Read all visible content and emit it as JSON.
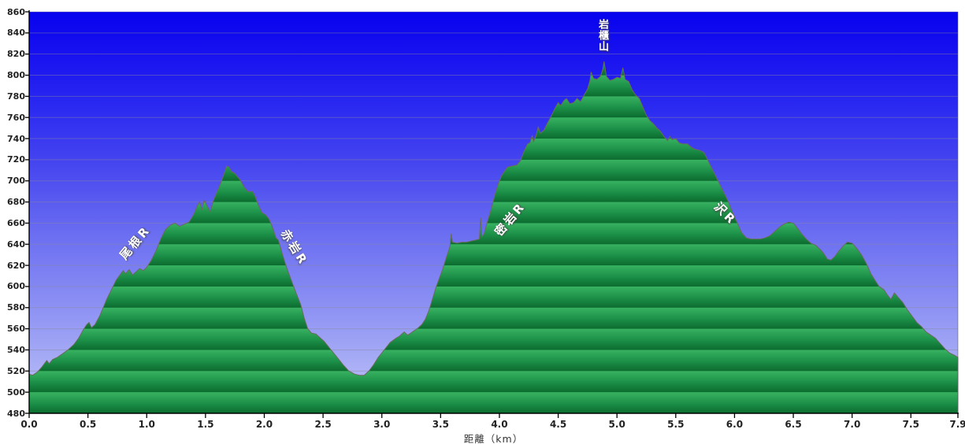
{
  "window": {
    "title": "elevation-profile-chart"
  },
  "colors": {
    "plot_bg_top": "#0702ee",
    "plot_bg_bottom": "#c3c7f9",
    "mountain_band_light": "#38b261",
    "mountain_band_mid": "#1b8f47",
    "mountain_band_dark": "#0c6b2f",
    "profile_stroke": "#6b6b5a",
    "gridline": "#8a8a9a",
    "axis_line": "#000000",
    "tick_text": "#222222",
    "annotation_text": "#ffffff"
  },
  "chart_data": {
    "type": "area",
    "title": "",
    "xlabel": "距離（km）",
    "ylabel": "",
    "xlim": [
      0,
      7.9
    ],
    "ylim": [
      480,
      860
    ],
    "grid": true,
    "x_ticks": [
      0.0,
      0.5,
      1.0,
      1.5,
      2.0,
      2.5,
      3.0,
      3.5,
      4.0,
      4.5,
      5.0,
      5.5,
      6.0,
      6.5,
      7.0,
      7.5,
      7.9
    ],
    "y_ticks": [
      480,
      500,
      520,
      540,
      560,
      580,
      600,
      620,
      640,
      660,
      680,
      700,
      720,
      740,
      760,
      780,
      800,
      820,
      840,
      860
    ],
    "series": [
      {
        "name": "elevation-profile",
        "points": [
          [
            0.0,
            517
          ],
          [
            0.03,
            516
          ],
          [
            0.07,
            519
          ],
          [
            0.11,
            524
          ],
          [
            0.15,
            530
          ],
          [
            0.17,
            527
          ],
          [
            0.2,
            531
          ],
          [
            0.24,
            533
          ],
          [
            0.28,
            536
          ],
          [
            0.33,
            540
          ],
          [
            0.38,
            545
          ],
          [
            0.42,
            551
          ],
          [
            0.46,
            559
          ],
          [
            0.49,
            564
          ],
          [
            0.51,
            566
          ],
          [
            0.53,
            561
          ],
          [
            0.56,
            564
          ],
          [
            0.6,
            572
          ],
          [
            0.63,
            580
          ],
          [
            0.66,
            588
          ],
          [
            0.7,
            597
          ],
          [
            0.74,
            606
          ],
          [
            0.78,
            612
          ],
          [
            0.8,
            615
          ],
          [
            0.82,
            612
          ],
          [
            0.85,
            616
          ],
          [
            0.88,
            611
          ],
          [
            0.91,
            614
          ],
          [
            0.94,
            617
          ],
          [
            0.97,
            615
          ],
          [
            1.0,
            618
          ],
          [
            1.04,
            625
          ],
          [
            1.08,
            634
          ],
          [
            1.12,
            645
          ],
          [
            1.16,
            654
          ],
          [
            1.2,
            658
          ],
          [
            1.24,
            660
          ],
          [
            1.28,
            657
          ],
          [
            1.32,
            659
          ],
          [
            1.36,
            661
          ],
          [
            1.4,
            668
          ],
          [
            1.43,
            676
          ],
          [
            1.45,
            680
          ],
          [
            1.47,
            673
          ],
          [
            1.49,
            682
          ],
          [
            1.51,
            677
          ],
          [
            1.54,
            671
          ],
          [
            1.57,
            682
          ],
          [
            1.6,
            690
          ],
          [
            1.63,
            698
          ],
          [
            1.66,
            707
          ],
          [
            1.68,
            714
          ],
          [
            1.7,
            713
          ],
          [
            1.72,
            709
          ],
          [
            1.75,
            707
          ],
          [
            1.78,
            703
          ],
          [
            1.8,
            700
          ],
          [
            1.83,
            694
          ],
          [
            1.86,
            690
          ],
          [
            1.9,
            690
          ],
          [
            1.92,
            686
          ],
          [
            1.95,
            677
          ],
          [
            1.98,
            670
          ],
          [
            2.01,
            668
          ],
          [
            2.04,
            664
          ],
          [
            2.07,
            656
          ],
          [
            2.1,
            646
          ],
          [
            2.12,
            644
          ],
          [
            2.15,
            632
          ],
          [
            2.19,
            618
          ],
          [
            2.23,
            606
          ],
          [
            2.27,
            594
          ],
          [
            2.31,
            583
          ],
          [
            2.34,
            570
          ],
          [
            2.37,
            560
          ],
          [
            2.4,
            556
          ],
          [
            2.44,
            555
          ],
          [
            2.47,
            552
          ],
          [
            2.51,
            548
          ],
          [
            2.56,
            541
          ],
          [
            2.62,
            533
          ],
          [
            2.67,
            526
          ],
          [
            2.72,
            520
          ],
          [
            2.77,
            517
          ],
          [
            2.81,
            516
          ],
          [
            2.85,
            516
          ],
          [
            2.89,
            520
          ],
          [
            2.93,
            526
          ],
          [
            2.97,
            533
          ],
          [
            3.02,
            540
          ],
          [
            3.07,
            547
          ],
          [
            3.12,
            551
          ],
          [
            3.15,
            553
          ],
          [
            3.19,
            557
          ],
          [
            3.22,
            554
          ],
          [
            3.26,
            557
          ],
          [
            3.3,
            560
          ],
          [
            3.34,
            564
          ],
          [
            3.37,
            569
          ],
          [
            3.4,
            577
          ],
          [
            3.43,
            588
          ],
          [
            3.46,
            599
          ],
          [
            3.49,
            608
          ],
          [
            3.52,
            617
          ],
          [
            3.55,
            628
          ],
          [
            3.58,
            638
          ],
          [
            3.59,
            650
          ],
          [
            3.6,
            642
          ],
          [
            3.64,
            641
          ],
          [
            3.68,
            642
          ],
          [
            3.72,
            642
          ],
          [
            3.76,
            643
          ],
          [
            3.8,
            644
          ],
          [
            3.83,
            645
          ],
          [
            3.84,
            665
          ],
          [
            3.85,
            647
          ],
          [
            3.87,
            650
          ],
          [
            3.9,
            662
          ],
          [
            3.93,
            673
          ],
          [
            3.96,
            686
          ],
          [
            3.99,
            697
          ],
          [
            4.02,
            705
          ],
          [
            4.05,
            710
          ],
          [
            4.07,
            713
          ],
          [
            4.11,
            714
          ],
          [
            4.15,
            715
          ],
          [
            4.18,
            719
          ],
          [
            4.21,
            728
          ],
          [
            4.24,
            735
          ],
          [
            4.26,
            736
          ],
          [
            4.28,
            743
          ],
          [
            4.29,
            737
          ],
          [
            4.31,
            742
          ],
          [
            4.33,
            751
          ],
          [
            4.35,
            745
          ],
          [
            4.38,
            748
          ],
          [
            4.41,
            755
          ],
          [
            4.44,
            761
          ],
          [
            4.47,
            768
          ],
          [
            4.5,
            774
          ],
          [
            4.52,
            771
          ],
          [
            4.55,
            776
          ],
          [
            4.57,
            778
          ],
          [
            4.6,
            773
          ],
          [
            4.63,
            774
          ],
          [
            4.66,
            778
          ],
          [
            4.69,
            775
          ],
          [
            4.72,
            781
          ],
          [
            4.75,
            787
          ],
          [
            4.77,
            795
          ],
          [
            4.78,
            803
          ],
          [
            4.8,
            797
          ],
          [
            4.83,
            796
          ],
          [
            4.86,
            799
          ],
          [
            4.88,
            806
          ],
          [
            4.89,
            813
          ],
          [
            4.91,
            799
          ],
          [
            4.94,
            795
          ],
          [
            4.97,
            796
          ],
          [
            5.0,
            798
          ],
          [
            5.03,
            797
          ],
          [
            5.05,
            807
          ],
          [
            5.07,
            796
          ],
          [
            5.1,
            794
          ],
          [
            5.13,
            786
          ],
          [
            5.16,
            781
          ],
          [
            5.19,
            778
          ],
          [
            5.22,
            770
          ],
          [
            5.25,
            762
          ],
          [
            5.28,
            757
          ],
          [
            5.31,
            754
          ],
          [
            5.34,
            750
          ],
          [
            5.37,
            747
          ],
          [
            5.4,
            742
          ],
          [
            5.43,
            738
          ],
          [
            5.45,
            742
          ],
          [
            5.47,
            739
          ],
          [
            5.5,
            740
          ],
          [
            5.53,
            736
          ],
          [
            5.56,
            735
          ],
          [
            5.6,
            735
          ],
          [
            5.63,
            732
          ],
          [
            5.66,
            730
          ],
          [
            5.7,
            729
          ],
          [
            5.74,
            727
          ],
          [
            5.78,
            718
          ],
          [
            5.82,
            709
          ],
          [
            5.86,
            700
          ],
          [
            5.9,
            691
          ],
          [
            5.94,
            682
          ],
          [
            5.98,
            671
          ],
          [
            6.02,
            661
          ],
          [
            6.06,
            651
          ],
          [
            6.1,
            646
          ],
          [
            6.14,
            645
          ],
          [
            6.18,
            645
          ],
          [
            6.22,
            645
          ],
          [
            6.26,
            646
          ],
          [
            6.3,
            648
          ],
          [
            6.34,
            652
          ],
          [
            6.38,
            656
          ],
          [
            6.42,
            659
          ],
          [
            6.46,
            661
          ],
          [
            6.5,
            660
          ],
          [
            6.53,
            656
          ],
          [
            6.57,
            650
          ],
          [
            6.61,
            645
          ],
          [
            6.65,
            641
          ],
          [
            6.69,
            639
          ],
          [
            6.73,
            635
          ],
          [
            6.76,
            631
          ],
          [
            6.79,
            626
          ],
          [
            6.82,
            625
          ],
          [
            6.85,
            628
          ],
          [
            6.89,
            634
          ],
          [
            6.93,
            639
          ],
          [
            6.96,
            642
          ],
          [
            7.0,
            641
          ],
          [
            7.04,
            636
          ],
          [
            7.08,
            630
          ],
          [
            7.12,
            622
          ],
          [
            7.16,
            612
          ],
          [
            7.2,
            605
          ],
          [
            7.23,
            600
          ],
          [
            7.27,
            597
          ],
          [
            7.3,
            592
          ],
          [
            7.33,
            588
          ],
          [
            7.36,
            594
          ],
          [
            7.39,
            590
          ],
          [
            7.43,
            585
          ],
          [
            7.47,
            578
          ],
          [
            7.51,
            572
          ],
          [
            7.55,
            566
          ],
          [
            7.59,
            562
          ],
          [
            7.63,
            557
          ],
          [
            7.67,
            554
          ],
          [
            7.71,
            551
          ],
          [
            7.75,
            546
          ],
          [
            7.79,
            541
          ],
          [
            7.83,
            537
          ],
          [
            7.87,
            535
          ],
          [
            7.9,
            533
          ]
        ]
      }
    ],
    "annotations": [
      {
        "text": "尾根R",
        "km": 0.9,
        "elev": 642,
        "rotate": -50,
        "vertical": false
      },
      {
        "text": "赤岩R",
        "km": 2.26,
        "elev": 637,
        "rotate": 58,
        "vertical": false
      },
      {
        "text": "密岩R",
        "km": 4.09,
        "elev": 664,
        "rotate": -50,
        "vertical": false
      },
      {
        "text": "岩櫃山",
        "km": 4.87,
        "elev": 838,
        "rotate": 0,
        "vertical": true
      },
      {
        "text": "沢R",
        "km": 5.92,
        "elev": 669,
        "rotate": 45,
        "vertical": false
      }
    ]
  }
}
